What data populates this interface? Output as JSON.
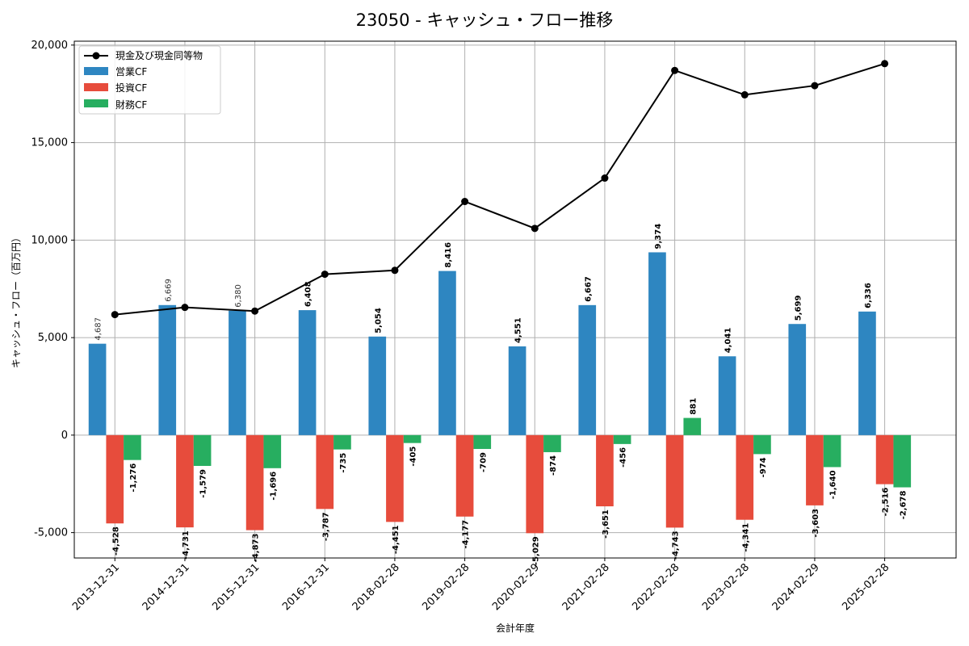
{
  "chart_data": {
    "type": "bar",
    "title": "23050 - キャッシュ・フロー推移",
    "xlabel": "会計年度",
    "ylabel": "キャッシュ・フロー（百万円）",
    "ylim": [
      -6300,
      20200
    ],
    "yticks": [
      -5000,
      0,
      5000,
      10000,
      15000,
      20000
    ],
    "ytick_labels": [
      "-5,000",
      "0",
      "5,000",
      "10,000",
      "15,000",
      "20,000"
    ],
    "grid": true,
    "legend_position": "top-left",
    "categories": [
      "2013-12-31",
      "2014-12-31",
      "2015-12-31",
      "2016-12-31",
      "2018-02-28",
      "2019-02-28",
      "2020-02-29",
      "2021-02-28",
      "2022-02-28",
      "2023-02-28",
      "2024-02-29",
      "2025-02-28"
    ],
    "series": [
      {
        "name": "営業CF",
        "kind": "bar",
        "color": "#2e86c1",
        "values": [
          4687,
          6669,
          6380,
          6408,
          5054,
          8416,
          4551,
          6667,
          9374,
          4041,
          5699,
          6336
        ],
        "labels": [
          "4,687",
          "6,669",
          "6,380",
          "6,408",
          "5,054",
          "8,416",
          "4,551",
          "6,667",
          "9,374",
          "4,041",
          "5,699",
          "6,336"
        ]
      },
      {
        "name": "投資CF",
        "kind": "bar",
        "color": "#e74c3c",
        "values": [
          -4528,
          -4731,
          -4873,
          -3787,
          -4451,
          -4177,
          -5029,
          -3651,
          -4743,
          -4341,
          -3603,
          -2516
        ],
        "labels": [
          "-4,528",
          "-4,731",
          "-4,873",
          "-3,787",
          "-4,451",
          "-4,177",
          "-5,029",
          "-3,651",
          "-4,743",
          "-4,341",
          "-3,603",
          "-2,516"
        ]
      },
      {
        "name": "財務CF",
        "kind": "bar",
        "color": "#27ae60",
        "values": [
          -1276,
          -1579,
          -1696,
          -735,
          -405,
          -709,
          -874,
          -456,
          881,
          -974,
          -1640,
          -2678
        ],
        "labels": [
          "-1,276",
          "-1,579",
          "-1,696",
          "-735",
          "-405",
          "-709",
          "-874",
          "-456",
          "881",
          "-974",
          "-1,640",
          "-2,678"
        ]
      },
      {
        "name": "現金及び現金同等物",
        "kind": "line",
        "color": "#000000",
        "values": [
          6180,
          6550,
          6360,
          8250,
          8450,
          11980,
          10600,
          13180,
          18700,
          17450,
          17920,
          19050
        ]
      }
    ]
  }
}
